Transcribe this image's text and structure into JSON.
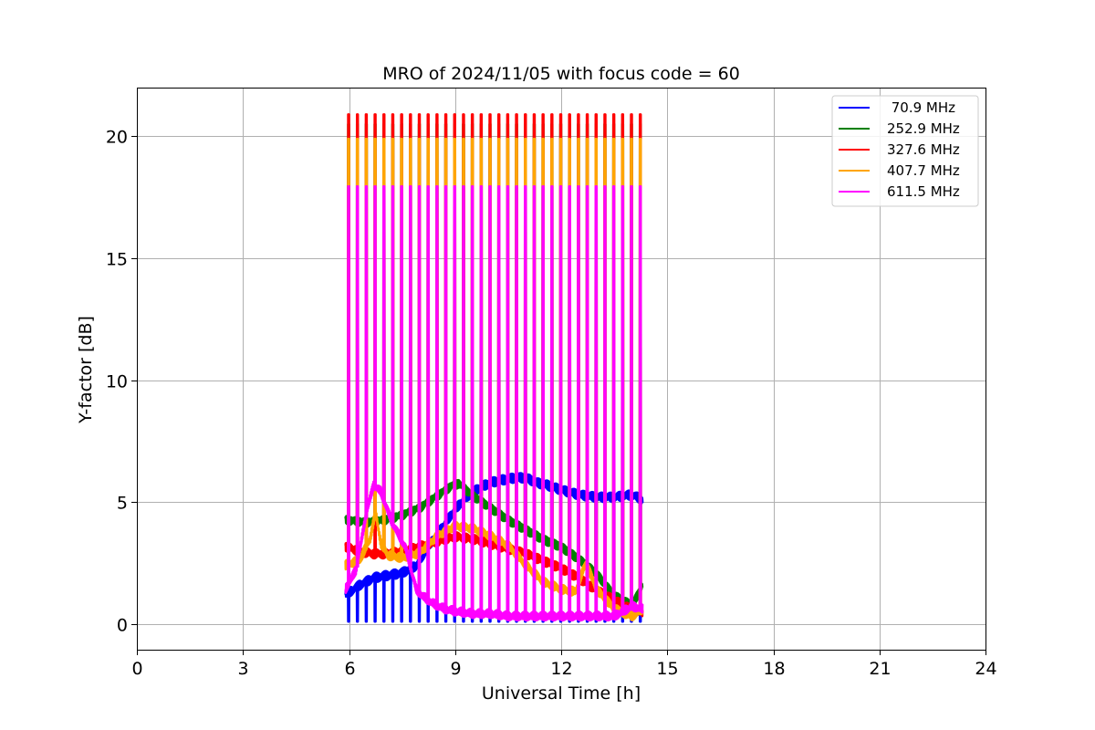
{
  "chart_data": {
    "type": "line",
    "title": "MRO of 2024/11/05 with focus code = 60",
    "xlabel": "Universal Time [h]",
    "ylabel": "Y-factor [dB]",
    "xlim": [
      0,
      24
    ],
    "ylim": [
      -1.05,
      22
    ],
    "xticks": [
      0,
      3,
      6,
      9,
      12,
      15,
      18,
      21,
      24
    ],
    "yticks": [
      0,
      5,
      10,
      15,
      20
    ],
    "grid": true,
    "legend_position": "top-right",
    "pulse_times_h": [
      5.97,
      6.22,
      6.47,
      6.72,
      6.97,
      7.22,
      7.47,
      7.72,
      7.97,
      8.22,
      8.47,
      8.72,
      8.97,
      9.22,
      9.47,
      9.72,
      9.97,
      10.22,
      10.47,
      10.72,
      10.97,
      11.22,
      11.47,
      11.72,
      11.97,
      12.22,
      12.47,
      12.72,
      12.97,
      13.22,
      13.47,
      13.72,
      13.97,
      14.22
    ],
    "series": [
      {
        "name": " 70.9 MHz",
        "color": "#0000ff",
        "pulse_peak_db": 0.1,
        "x": [
          5.9,
          6.3,
          6.7,
          7.1,
          7.5,
          7.9,
          8.3,
          8.7,
          9.0,
          9.3,
          9.7,
          10.0,
          10.3,
          10.7,
          11.0,
          11.3,
          11.6,
          12.0,
          12.5,
          13.0,
          13.5,
          14.0,
          14.3
        ],
        "y": [
          1.2,
          1.6,
          1.9,
          2.0,
          2.1,
          2.4,
          3.3,
          4.1,
          4.7,
          5.2,
          5.6,
          5.8,
          5.9,
          6.0,
          6.0,
          5.8,
          5.7,
          5.5,
          5.3,
          5.2,
          5.2,
          5.3,
          5.1
        ]
      },
      {
        "name": "252.9 MHz",
        "color": "#008000",
        "pulse_peak_db": 20.5,
        "x": [
          5.9,
          6.5,
          7.0,
          7.5,
          8.0,
          8.5,
          8.9,
          9.1,
          9.5,
          10.0,
          10.5,
          11.0,
          11.5,
          12.0,
          12.5,
          13.0,
          13.5,
          14.0,
          14.3
        ],
        "y": [
          4.3,
          4.2,
          4.3,
          4.5,
          4.8,
          5.3,
          5.7,
          5.8,
          5.3,
          4.8,
          4.3,
          3.9,
          3.5,
          3.2,
          2.7,
          2.1,
          1.2,
          0.8,
          1.6
        ]
      },
      {
        "name": "327.6 MHz",
        "color": "#ff0000",
        "pulse_peak_db": 20.9,
        "x": [
          5.9,
          6.3,
          6.7,
          7.0,
          7.5,
          8.0,
          8.5,
          9.0,
          9.5,
          10.0,
          10.5,
          11.0,
          11.5,
          12.0,
          12.5,
          13.0,
          13.5,
          14.0,
          14.3
        ],
        "y": [
          3.2,
          3.0,
          2.9,
          2.9,
          3.0,
          3.2,
          3.4,
          3.6,
          3.5,
          3.3,
          3.1,
          2.9,
          2.6,
          2.3,
          1.9,
          1.4,
          1.0,
          0.6,
          0.5
        ]
      },
      {
        "name": "407.7 MHz",
        "color": "#ffa500",
        "pulse_peak_db": 19.9,
        "x": [
          5.9,
          6.3,
          6.6,
          6.75,
          6.9,
          7.1,
          7.5,
          8.0,
          8.5,
          9.0,
          9.5,
          10.0,
          10.5,
          11.0,
          11.5,
          12.0,
          12.4,
          12.7,
          13.0,
          13.5,
          14.0,
          14.3
        ],
        "y": [
          2.4,
          2.6,
          3.5,
          4.6,
          3.3,
          2.8,
          2.7,
          2.9,
          3.6,
          4.0,
          3.9,
          3.6,
          3.2,
          2.4,
          1.7,
          1.4,
          1.3,
          2.5,
          1.4,
          0.6,
          0.3,
          0.6
        ]
      },
      {
        "name": "611.5 MHz",
        "color": "#ff00ff",
        "pulse_peak_db": 17.95,
        "x": [
          5.9,
          6.2,
          6.5,
          6.7,
          6.9,
          7.2,
          7.6,
          7.9,
          8.1,
          8.4,
          8.7,
          9.0,
          9.5,
          10.0,
          10.5,
          11.0,
          11.5,
          12.0,
          12.5,
          13.0,
          13.5,
          14.0,
          14.3
        ],
        "y": [
          1.4,
          2.2,
          4.6,
          5.7,
          5.4,
          4.2,
          3.1,
          1.4,
          1.1,
          0.8,
          0.6,
          0.5,
          0.4,
          0.4,
          0.3,
          0.3,
          0.3,
          0.3,
          0.3,
          0.3,
          0.3,
          0.7,
          0.6
        ]
      }
    ]
  }
}
